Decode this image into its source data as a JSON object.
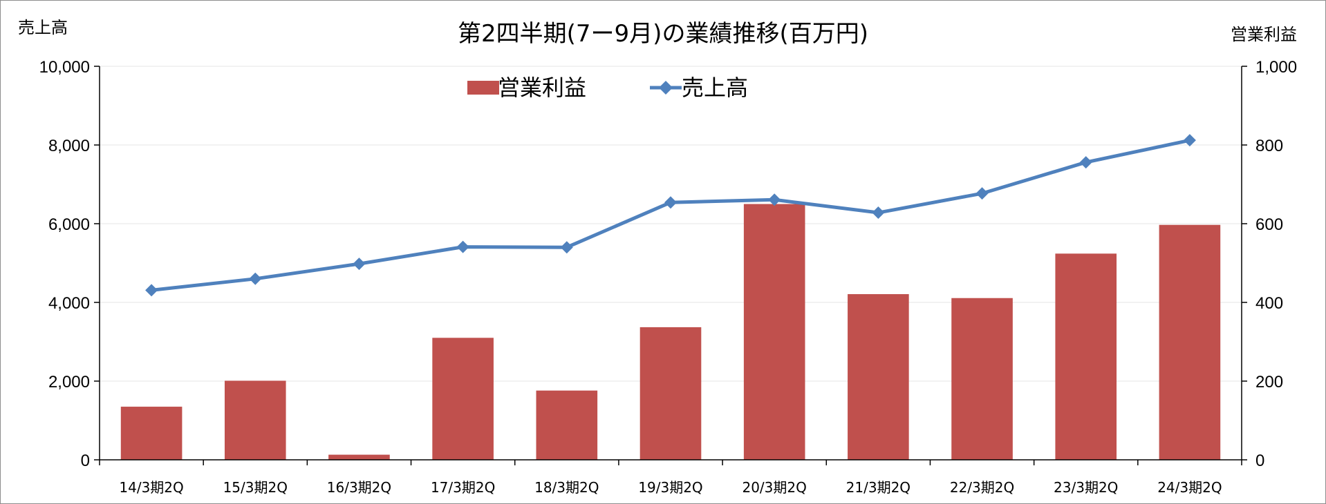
{
  "chart_data": {
    "type": "bar+line",
    "title": "第2四半期(7ー9月)の業績推移(百万円)",
    "categories": [
      "14/3期2Q",
      "15/3期2Q",
      "16/3期2Q",
      "17/3期2Q",
      "18/3期2Q",
      "19/3期2Q",
      "20/3期2Q",
      "21/3期2Q",
      "22/3期2Q",
      "23/3期2Q",
      "24/3期2Q"
    ],
    "series": [
      {
        "name": "営業利益",
        "type": "bar",
        "axis": "right",
        "color": "#c0504d",
        "values": [
          135,
          201,
          13,
          310,
          176,
          337,
          650,
          421,
          411,
          524,
          597
        ]
      },
      {
        "name": "売上高",
        "type": "line",
        "axis": "left",
        "color": "#4f81bd",
        "values": [
          4310,
          4600,
          4980,
          5410,
          5400,
          6540,
          6610,
          6280,
          6770,
          7560,
          8120
        ]
      }
    ],
    "y_left": {
      "label": "売上高",
      "ylim": [
        0,
        10000
      ],
      "ticks": [
        "0",
        "2,000",
        "4,000",
        "6,000",
        "8,000",
        "10,000"
      ]
    },
    "y_right": {
      "label": "営業利益",
      "ylim": [
        0,
        1000
      ],
      "ticks": [
        "0",
        "200",
        "400",
        "600",
        "800",
        "1,000"
      ]
    },
    "grid": true,
    "legend": {
      "placement": "top-center",
      "items": [
        "営業利益",
        "売上高"
      ]
    }
  }
}
